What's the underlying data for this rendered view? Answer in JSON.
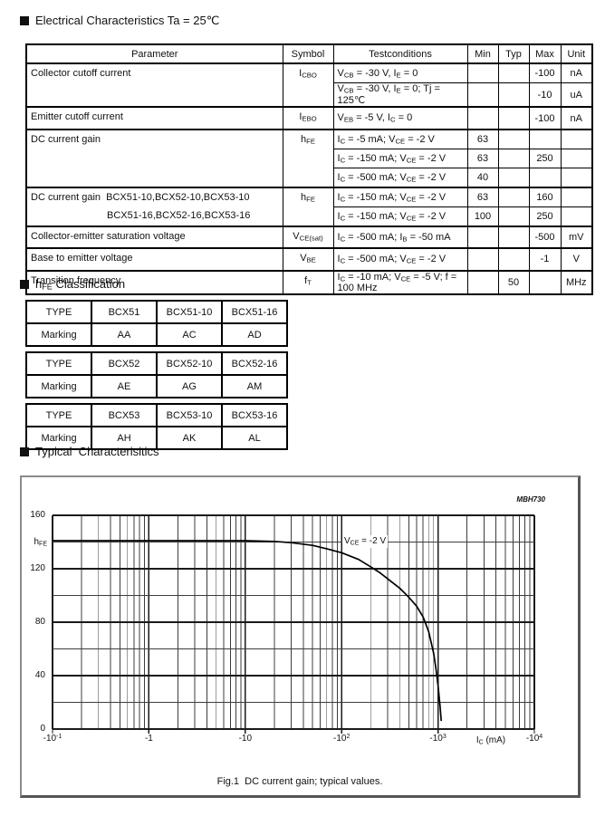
{
  "colors": {
    "text": "#111111",
    "table_border": "#000000",
    "grid_major": "#1a1a1a",
    "grid_minor": "#3d3d3d",
    "curve": "#000000",
    "frame_border": "#555555"
  },
  "icons": {
    "section_marker": "black-square"
  },
  "sections": {
    "electrical": {
      "title": "Electrical Characteristics Ta = 25℃"
    },
    "classification": {
      "title": "h~FE~ Classification"
    },
    "typical": {
      "title": "Typical  Characterisitics"
    }
  },
  "electrical_table": {
    "headers": [
      "Parameter",
      "Symbol",
      "Testconditions",
      "Min",
      "Typ",
      "Max",
      "Unit"
    ],
    "groups": [
      {
        "parameter": [
          "Collector cutoff current"
        ],
        "symbol": "I~CBO~",
        "rows": [
          {
            "cond": "V~CB~ = -30 V, I~E~ = 0",
            "min": "",
            "typ": "",
            "max": "-100",
            "unit": "nA"
          },
          {
            "cond": "V~CB~ = -30 V, I~E~ = 0; Tj = 125℃",
            "min": "",
            "typ": "",
            "max": "-10",
            "unit": "uA"
          }
        ]
      },
      {
        "parameter": [
          "Emitter cutoff current"
        ],
        "symbol": "I~EBO~",
        "rows": [
          {
            "cond": "V~EB~ = -5 V, I~C~ = 0",
            "min": "",
            "typ": "",
            "max": "-100",
            "unit": "nA"
          }
        ]
      },
      {
        "parameter": [
          "DC current gain"
        ],
        "symbol": "h~FE~",
        "rows": [
          {
            "cond": "I~C~ = -5 mA; V~CE~ = -2 V",
            "min": "63",
            "typ": "",
            "max": "",
            "unit": ""
          },
          {
            "cond": "I~C~ = -150 mA; V~CE~ = -2 V",
            "min": "63",
            "typ": "",
            "max": "250",
            "unit": ""
          },
          {
            "cond": "I~C~ = -500 mA; V~CE~ = -2 V",
            "min": "40",
            "typ": "",
            "max": "",
            "unit": ""
          }
        ]
      },
      {
        "parameter": [
          "DC current gain  BCX51-10,BCX52-10,BCX53-10",
          "BCX51-16,BCX52-16,BCX53-16"
        ],
        "symbol": "h~FE~",
        "rows": [
          {
            "cond": "I~C~ = -150 mA; V~CE~ = -2 V",
            "min": "63",
            "typ": "",
            "max": "160",
            "unit": ""
          },
          {
            "cond": "I~C~ = -150 mA; V~CE~ = -2 V",
            "min": "100",
            "typ": "",
            "max": "250",
            "unit": ""
          }
        ]
      },
      {
        "parameter": [
          "Collector-emitter saturation voltage"
        ],
        "symbol": "V~CE(sat)~",
        "rows": [
          {
            "cond": "I~C~ = -500 mA; I~B~ = -50 mA",
            "min": "",
            "typ": "",
            "max": "-500",
            "unit": "mV"
          }
        ]
      },
      {
        "parameter": [
          "Base to emitter voltage"
        ],
        "symbol": "V~BE~",
        "rows": [
          {
            "cond": "I~C~ = -500 mA; V~CE~ = -2 V",
            "min": "",
            "typ": "",
            "max": "-1",
            "unit": "V"
          }
        ]
      },
      {
        "parameter": [
          "Transition frequency"
        ],
        "symbol": "f~T~",
        "rows": [
          {
            "cond": "I~C~ = -10 mA; V~CE~ = -5 V; f = 100 MHz",
            "min": "",
            "typ": "50",
            "max": "",
            "unit": "MHz"
          }
        ]
      }
    ]
  },
  "classification_tables": [
    {
      "rows": [
        [
          "TYPE",
          "BCX51",
          "BCX51-10",
          "BCX51-16"
        ],
        [
          "Marking",
          "AA",
          "AC",
          "AD"
        ]
      ]
    },
    {
      "rows": [
        [
          "TYPE",
          "BCX52",
          "BCX52-10",
          "BCX52-16"
        ],
        [
          "Marking",
          "AE",
          "AG",
          "AM"
        ]
      ]
    },
    {
      "rows": [
        [
          "TYPE",
          "BCX53",
          "BCX53-10",
          "BCX53-16"
        ],
        [
          "Marking",
          "AH",
          "AK",
          "AL"
        ]
      ]
    }
  ],
  "chart_data": {
    "type": "line",
    "title": "Fig.1  DC current gain; typical values.",
    "figure_code": "MBH730",
    "annotation": "V~CE~ = -2 V",
    "xlabel": "I~C~ (mA)",
    "ylabel": "h~FE~",
    "x_scale": "log",
    "x_unit": "mA (negative, magnitudes shown)",
    "x_decades": [
      -1,
      4
    ],
    "x_tick_labels": [
      "-10^-1^",
      "-1",
      "-10",
      "-10^2^",
      "-10^3^",
      "-10^4^"
    ],
    "ylim": [
      0,
      160
    ],
    "y_major_step": 40,
    "y_minor_step": 20,
    "y_tick_labels": [
      "0",
      "40",
      "80",
      "120",
      "160"
    ],
    "grid": true,
    "legend_position": "none",
    "series": [
      {
        "name": "h~FE~ typical, V~CE~ = -2 V",
        "points": [
          [
            0.1,
            141
          ],
          [
            1,
            141
          ],
          [
            5,
            141
          ],
          [
            10,
            141
          ],
          [
            20,
            140.5
          ],
          [
            30,
            139.5
          ],
          [
            50,
            137.5
          ],
          [
            70,
            135
          ],
          [
            100,
            132
          ],
          [
            150,
            127
          ],
          [
            200,
            121.5
          ],
          [
            250,
            117
          ],
          [
            300,
            112.5
          ],
          [
            400,
            105.5
          ],
          [
            500,
            98.5
          ],
          [
            600,
            92
          ],
          [
            700,
            84
          ],
          [
            800,
            73
          ],
          [
            900,
            57
          ],
          [
            950,
            46
          ],
          [
            1000,
            33
          ],
          [
            1050,
            17
          ],
          [
            1080,
            6
          ]
        ]
      }
    ]
  }
}
